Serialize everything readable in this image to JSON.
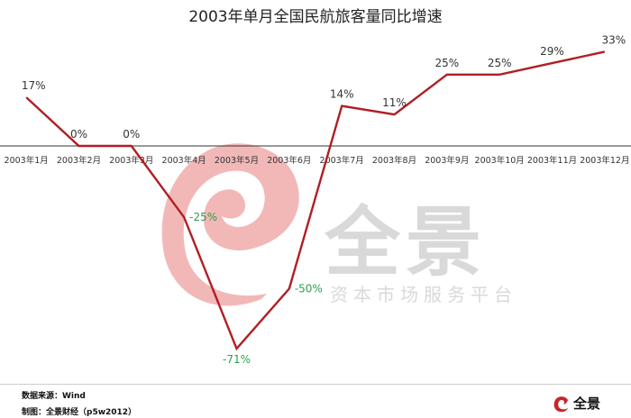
{
  "chart_data": {
    "type": "line",
    "title": "2003年单月全国民航旅客量同比增速",
    "categories": [
      "2003年1月",
      "2003年2月",
      "2003年3月",
      "2003年4月",
      "2003年5月",
      "2003年6月",
      "2003年7月",
      "2003年8月",
      "2003年9月",
      "2003年10月",
      "2003年11月",
      "2003年12月"
    ],
    "series": [
      {
        "values": [
          17,
          0,
          0,
          -25,
          -71,
          -50,
          14,
          11,
          25,
          25,
          29,
          33
        ]
      }
    ],
    "data_labels": [
      "17%",
      "0%",
      "0%",
      "-25%",
      "-71%",
      "-50%",
      "14%",
      "11%",
      "25%",
      "25%",
      "29%",
      "33%"
    ],
    "ylim": [
      -71,
      33
    ],
    "grid": false,
    "legend": "none",
    "colors": {
      "line": "#b01f24",
      "positive_label": "#333333",
      "negative_label": "#2e9e4a",
      "watermark": "#f2b8b8",
      "watermark_text": "#d9d9d9",
      "axis": "#333333"
    }
  },
  "watermark": {
    "brand": "全景",
    "tagline": "资本市场服务平台"
  },
  "footer": {
    "source": "数据来源：Wind",
    "credit": "制图：全景财经（p5w2012）",
    "logo_text": "全景"
  }
}
